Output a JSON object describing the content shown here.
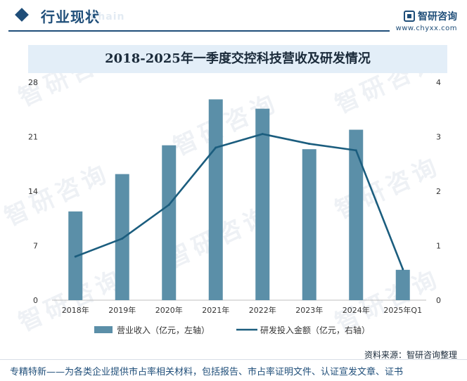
{
  "header": {
    "title": "行业现状",
    "ghost": "Chain",
    "brand_name": "智研咨询",
    "brand_url": "www.chyxx.com"
  },
  "watermark_text": "智研咨询",
  "chart_data": {
    "type": "bar",
    "title": "2018-2025年一季度交控科技营收及研发情况",
    "categories": [
      "2018年",
      "2019年",
      "2020年",
      "2021年",
      "2022年",
      "2023年",
      "2024年",
      "2025年Q1"
    ],
    "series": [
      {
        "name": "营业收入（亿元，左轴）",
        "type": "bar",
        "axis": "left",
        "color": "#5b8fa8",
        "values": [
          11.4,
          16.2,
          19.9,
          25.8,
          24.6,
          19.4,
          21.9,
          3.9
        ]
      },
      {
        "name": "研发投入金额（亿元，右轴）",
        "type": "line",
        "axis": "right",
        "color": "#1b5d7e",
        "values": [
          0.8,
          1.13,
          1.75,
          2.8,
          3.05,
          2.87,
          2.75,
          0.57
        ]
      }
    ],
    "y_left": {
      "min": 0,
      "max": 28,
      "ticks": [
        0,
        7,
        14,
        21,
        28
      ]
    },
    "y_right": {
      "min": 0,
      "max": 4,
      "ticks": [
        0,
        1,
        2,
        3,
        4
      ]
    },
    "legend_position": "bottom"
  },
  "source": "资料来源：智研咨询整理",
  "footer": "专精特新——为各类企业提供市占率相关材料，包括报告、市占率证明文件、认证宣发文章、证书"
}
